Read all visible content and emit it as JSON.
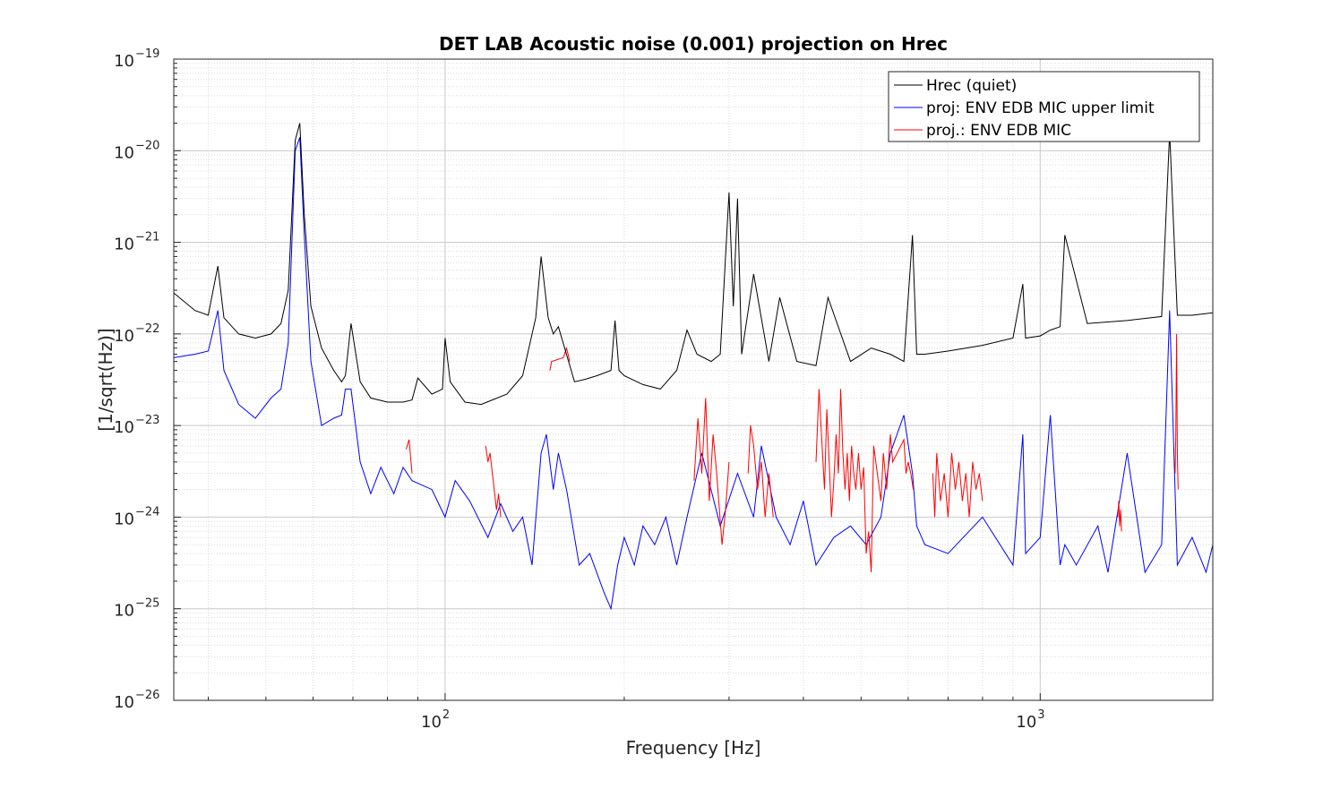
{
  "chart_data": {
    "type": "line",
    "title": "DET LAB Acoustic noise (0.001) projection on Hrec",
    "xlabel": "Frequency [Hz]",
    "ylabel": "[1/sqrt(Hz)]",
    "xscale": "log",
    "yscale": "log",
    "xlim": [
      35,
      1950
    ],
    "ylim": [
      1e-26,
      1e-19
    ],
    "grid": true,
    "minor_grid": true,
    "legend_position": "top-right",
    "x_ticks": [
      {
        "value": 100,
        "base": "10",
        "exp": "2"
      },
      {
        "value": 1000,
        "base": "10",
        "exp": "3"
      }
    ],
    "y_ticks": [
      {
        "value": 1e-26,
        "base": "10",
        "exp": "−26"
      },
      {
        "value": 1e-25,
        "base": "10",
        "exp": "−25"
      },
      {
        "value": 1e-24,
        "base": "10",
        "exp": "−24"
      },
      {
        "value": 1e-23,
        "base": "10",
        "exp": "−23"
      },
      {
        "value": 1e-22,
        "base": "10",
        "exp": "−22"
      },
      {
        "value": 1e-21,
        "base": "10",
        "exp": "−21"
      },
      {
        "value": 1e-20,
        "base": "10",
        "exp": "−20"
      },
      {
        "value": 1e-19,
        "base": "10",
        "exp": "−19"
      }
    ],
    "series": [
      {
        "name": "Hrec (quiet)",
        "color": "#000000",
        "x": [
          35,
          38,
          40,
          41.5,
          42.5,
          45,
          48,
          51,
          53,
          54.5,
          56,
          57,
          58,
          59.5,
          62,
          65,
          67,
          68,
          69.5,
          72,
          75,
          80,
          85,
          88,
          90,
          95,
          99,
          100,
          102,
          108,
          115,
          120,
          127,
          135,
          142,
          145,
          149,
          152,
          155,
          165,
          172,
          180,
          190,
          193,
          196,
          200,
          215,
          230,
          245,
          255,
          265,
          280,
          290,
          300,
          305,
          310,
          315,
          330,
          350,
          365,
          390,
          420,
          440,
          480,
          520,
          560,
          590,
          610,
          620,
          640,
          700,
          800,
          900,
          935,
          945,
          1000,
          1040,
          1080,
          1100,
          1200,
          1400,
          1600,
          1650,
          1700,
          1800,
          1950
        ],
        "y": [
          2.8e-22,
          1.8e-22,
          1.6e-22,
          5.5e-22,
          1.5e-22,
          1e-22,
          9e-23,
          1e-22,
          1.3e-22,
          3e-22,
          1.3e-20,
          2e-20,
          2e-21,
          2e-22,
          7e-23,
          4e-23,
          3e-23,
          3.5e-23,
          1.3e-22,
          3e-23,
          2e-23,
          1.8e-23,
          1.8e-23,
          1.9e-23,
          3.3e-23,
          2.2e-23,
          2.5e-23,
          9e-23,
          3e-23,
          1.8e-23,
          1.7e-23,
          1.9e-23,
          2.2e-23,
          3.5e-23,
          1.5e-22,
          7e-22,
          1.5e-22,
          1e-22,
          1.2e-22,
          3e-23,
          3.2e-23,
          3.5e-23,
          4e-23,
          1.4e-22,
          4e-23,
          3.5e-23,
          2.8e-23,
          2.5e-23,
          4e-23,
          1.1e-22,
          6e-23,
          5e-23,
          6e-23,
          3.5e-21,
          2e-22,
          3e-21,
          6e-23,
          4.5e-22,
          5e-23,
          2.5e-22,
          5e-23,
          4.5e-23,
          2.5e-22,
          5e-23,
          7e-23,
          6e-23,
          5e-23,
          1.2e-21,
          6e-23,
          6e-23,
          6.5e-23,
          7.5e-23,
          9e-23,
          3.5e-22,
          9e-23,
          9.5e-23,
          1.1e-22,
          1.2e-22,
          1.2e-21,
          1.3e-22,
          1.4e-22,
          1.55e-22,
          1.6e-20,
          1.6e-22,
          1.6e-22,
          1.7e-22
        ]
      },
      {
        "name": "proj: ENV EDB MIC upper limit",
        "color": "#0000ff",
        "x": [
          35,
          38,
          40,
          41.5,
          42.5,
          45,
          48,
          51,
          53,
          54.5,
          56,
          57,
          58,
          59.5,
          62,
          65,
          67,
          68,
          69.5,
          72,
          75,
          78,
          82,
          85,
          88,
          95,
          100,
          104,
          110,
          118,
          124,
          130,
          135,
          140,
          145,
          148,
          152,
          155,
          160,
          168,
          175,
          185,
          190,
          195,
          200,
          208,
          215,
          225,
          235,
          245,
          255,
          270,
          290,
          310,
          330,
          340,
          360,
          380,
          400,
          420,
          450,
          480,
          510,
          540,
          560,
          590,
          610,
          620,
          640,
          700,
          800,
          900,
          935,
          945,
          1000,
          1040,
          1080,
          1100,
          1150,
          1250,
          1300,
          1400,
          1500,
          1600,
          1650,
          1700,
          1800,
          1900,
          1950
        ],
        "y": [
          5.5e-23,
          6e-23,
          6.5e-23,
          1.8e-22,
          4e-23,
          1.7e-23,
          1.2e-23,
          2e-23,
          2.5e-23,
          8e-23,
          1e-20,
          1.4e-20,
          1.2e-21,
          5e-23,
          1e-23,
          1.2e-23,
          1.3e-23,
          2.5e-23,
          2.5e-23,
          4e-24,
          1.8e-24,
          3.5e-24,
          1.8e-24,
          3.5e-24,
          2.5e-24,
          2e-24,
          1e-24,
          2.5e-24,
          1.5e-24,
          6e-25,
          1.4e-24,
          7e-25,
          1e-24,
          3e-25,
          5e-24,
          8e-24,
          2e-24,
          5e-24,
          2e-24,
          3e-25,
          4e-25,
          1.5e-25,
          1e-25,
          3e-25,
          6e-25,
          3e-25,
          8e-25,
          5e-25,
          1e-24,
          3e-25,
          1e-24,
          5e-24,
          8e-25,
          3e-24,
          1e-24,
          6e-24,
          1e-24,
          5e-25,
          1.5e-24,
          3e-25,
          6e-25,
          8e-25,
          5e-25,
          1e-24,
          5e-24,
          1.3e-23,
          3e-24,
          8e-25,
          5e-25,
          4e-25,
          1e-24,
          3e-25,
          8e-24,
          4e-25,
          6e-25,
          1.3e-23,
          3e-25,
          5e-25,
          3e-25,
          8e-25,
          2.5e-25,
          5e-24,
          2.5e-25,
          5e-25,
          1.8e-22,
          3e-25,
          6e-25,
          2.5e-25,
          5e-25
        ]
      },
      {
        "name": "proj.: ENV EDB MIC",
        "color": "#ff0000",
        "x": [
          86,
          87,
          88,
          117,
          118,
          119,
          122,
          123,
          124,
          150,
          151,
          158,
          160,
          162,
          262,
          266,
          270,
          274,
          278,
          282,
          286,
          292,
          296,
          300,
          323,
          326,
          330,
          335,
          340,
          345,
          350,
          356,
          420,
          425,
          430,
          434,
          438,
          442,
          446,
          450,
          454,
          458,
          462,
          466,
          470,
          474,
          478,
          482,
          486,
          490,
          495,
          500,
          505,
          510,
          515,
          520,
          525,
          540,
          545,
          552,
          560,
          565,
          590,
          595,
          600,
          606,
          612,
          660,
          665,
          670,
          680,
          690,
          700,
          710,
          720,
          730,
          740,
          750,
          760,
          770,
          780,
          790,
          800,
          1350,
          1355,
          1360,
          1365,
          1370,
          1685,
          1690,
          1695,
          1700,
          1705
        ],
        "y": [
          5.5e-24,
          7e-24,
          3e-24,
          6e-24,
          4e-24,
          5e-24,
          1.2e-24,
          1.8e-24,
          1e-24,
          4e-23,
          5e-23,
          5.5e-23,
          7e-23,
          5e-23,
          2.5e-24,
          1.2e-23,
          3e-24,
          2e-23,
          1.5e-24,
          8e-24,
          3e-24,
          5e-25,
          1.2e-24,
          4e-24,
          3e-24,
          1e-23,
          6e-24,
          2e-24,
          4e-24,
          1e-24,
          3e-24,
          1e-24,
          4e-24,
          2.5e-23,
          6e-24,
          2e-24,
          1.5e-23,
          4e-24,
          1e-24,
          2.5e-24,
          8e-24,
          3e-24,
          2.5e-23,
          5e-24,
          2e-24,
          5e-24,
          1.5e-24,
          6e-24,
          3e-24,
          2e-24,
          5e-24,
          2e-24,
          3.5e-24,
          4e-25,
          7e-25,
          2.5e-25,
          6e-24,
          1.5e-24,
          5e-24,
          2e-24,
          8e-24,
          4e-24,
          7e-24,
          3e-24,
          4e-24,
          3e-24,
          2e-24,
          3e-24,
          1e-24,
          5e-24,
          1.5e-24,
          3e-24,
          1e-24,
          5e-24,
          2e-24,
          4e-24,
          1.5e-24,
          3e-24,
          1e-24,
          4e-24,
          2e-24,
          3e-24,
          1.5e-24,
          1e-24,
          1.5e-24,
          8e-25,
          1.2e-24,
          7e-25,
          3e-24,
          8e-24,
          1e-22,
          5e-24,
          2e-24
        ]
      }
    ]
  }
}
